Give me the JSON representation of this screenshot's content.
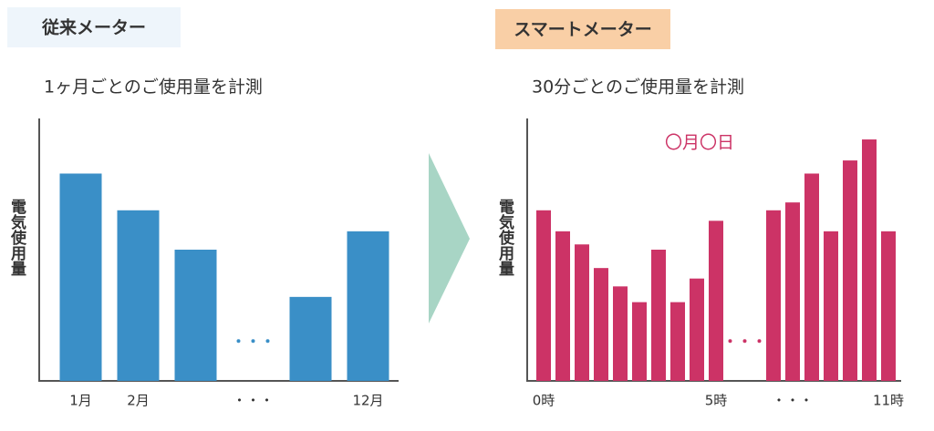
{
  "chart_data": [
    {
      "type": "bar",
      "title": "従来メーター",
      "subtitle": "1ヶ月ごとのご使用量を計測",
      "ylabel": "電気使用量",
      "categories": [
        "1月",
        "2月",
        null,
        "・・・",
        null,
        "12月"
      ],
      "values": [
        79,
        65,
        50,
        null,
        32,
        57
      ],
      "gap_mark": "・・・",
      "color": "#3a8fc7",
      "ylim": [
        0,
        100
      ]
    },
    {
      "type": "bar",
      "title": "スマートメーター",
      "subtitle": "30分ごとのご使用量を計測",
      "ylabel": "電気使用量",
      "annotation": "〇月〇日",
      "categories": [
        "0時",
        null,
        null,
        null,
        null,
        null,
        null,
        null,
        null,
        "5時",
        null,
        null,
        null,
        "・・・",
        null,
        null,
        null,
        null,
        "11時"
      ],
      "values": [
        65,
        57,
        52,
        43,
        36,
        30,
        50,
        30,
        39,
        61,
        null,
        null,
        65,
        68,
        79,
        57,
        84,
        92,
        57
      ],
      "gap_mark": "・・・",
      "color": "#cc3366",
      "ylim": [
        0,
        100
      ]
    }
  ]
}
